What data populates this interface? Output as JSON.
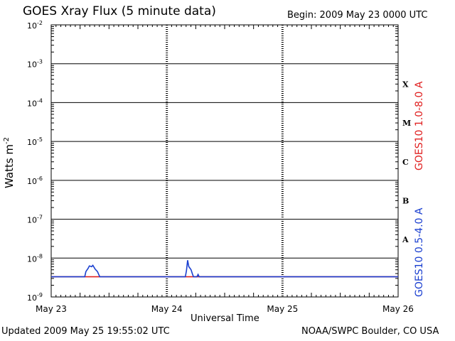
{
  "header": {
    "title": "GOES Xray Flux (5 minute data)",
    "begin": "Begin:  2009 May 23 0000 UTC"
  },
  "footer": {
    "updated": "Updated 2009 May 25 19:55:02 UTC",
    "credit": "NOAA/SWPC Boulder, CO USA"
  },
  "chart_data": {
    "type": "line",
    "title": "GOES Xray Flux (5 minute data)",
    "xlabel": "Universal Time",
    "ylabel": "Watts m",
    "ylabel_exponent": "-2",
    "y_scale": "log",
    "ylim": [
      1e-09,
      0.01
    ],
    "y_ticks": [
      {
        "base": "10",
        "exp": "-2",
        "value": 0.01
      },
      {
        "base": "10",
        "exp": "-3",
        "value": 0.001
      },
      {
        "base": "10",
        "exp": "-4",
        "value": 0.0001
      },
      {
        "base": "10",
        "exp": "-5",
        "value": 1e-05
      },
      {
        "base": "10",
        "exp": "-6",
        "value": 1e-06
      },
      {
        "base": "10",
        "exp": "-7",
        "value": 1e-07
      },
      {
        "base": "10",
        "exp": "-8",
        "value": 1e-08
      },
      {
        "base": "10",
        "exp": "-9",
        "value": 1e-09
      }
    ],
    "x_ticks": [
      "May 23",
      "May 24",
      "May 25",
      "May 26"
    ],
    "xlim_days": [
      0,
      3
    ],
    "grid": true,
    "flare_classes": [
      {
        "label": "X",
        "value": 0.0003
      },
      {
        "label": "M",
        "value": 3e-05
      },
      {
        "label": "C",
        "value": 3e-06
      },
      {
        "label": "B",
        "value": 3e-07
      },
      {
        "label": "A",
        "value": 3e-08
      }
    ],
    "series": [
      {
        "name": "GOES10 1.0-8.0 A",
        "color": "#e02020",
        "points": [
          [
            0,
            3.3e-09
          ],
          [
            3,
            3.3e-09
          ]
        ]
      },
      {
        "name": "GOES10 0.5-4.0 A",
        "color": "#1a3fd0",
        "points": [
          [
            0,
            3.3e-09
          ],
          [
            0.29,
            3.3e-09
          ],
          [
            0.3,
            4.5e-09
          ],
          [
            0.32,
            5.5e-09
          ],
          [
            0.33,
            6.3e-09
          ],
          [
            0.35,
            6e-09
          ],
          [
            0.36,
            6.5e-09
          ],
          [
            0.38,
            5.2e-09
          ],
          [
            0.4,
            4.5e-09
          ],
          [
            0.42,
            3.3e-09
          ],
          [
            1.16,
            3.3e-09
          ],
          [
            1.17,
            4.8e-09
          ],
          [
            1.18,
            8.8e-09
          ],
          [
            1.19,
            6e-09
          ],
          [
            1.2,
            5.5e-09
          ],
          [
            1.21,
            5e-09
          ],
          [
            1.22,
            4e-09
          ],
          [
            1.23,
            3.3e-09
          ],
          [
            1.26,
            3.3e-09
          ],
          [
            1.27,
            3.8e-09
          ],
          [
            1.28,
            3.3e-09
          ],
          [
            3,
            3.3e-09
          ]
        ]
      }
    ]
  }
}
